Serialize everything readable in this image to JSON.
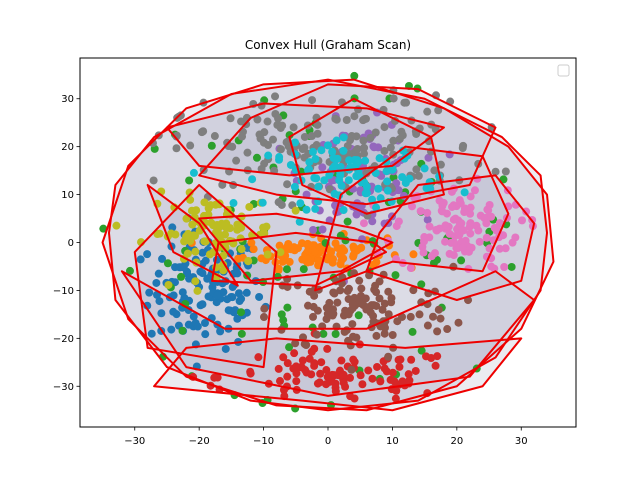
{
  "chart_data": {
    "type": "scatter",
    "title": "Convex Hull (Graham Scan)",
    "xlabel": "",
    "ylabel": "",
    "xlim": [
      -38.5,
      38.5
    ],
    "ylim": [
      -38.5,
      38.5
    ],
    "xticks": [
      -30,
      -20,
      -10,
      0,
      10,
      20,
      30
    ],
    "yticks": [
      -30,
      -20,
      -10,
      0,
      10,
      20,
      30
    ],
    "grid": false,
    "legend": {
      "position": "top-right",
      "entries": []
    },
    "hull_color": "#ee0000",
    "hull_fill": "#b0b0c8",
    "clusters": [
      {
        "color": "#1f77b4",
        "center": [
          -19,
          -10
        ],
        "spread": [
          8,
          11
        ],
        "count": 130
      },
      {
        "color": "#ff7f0e",
        "center": [
          -2,
          -2
        ],
        "spread": [
          10,
          3
        ],
        "count": 110
      },
      {
        "color": "#2ca02c",
        "center": [
          0,
          0
        ],
        "spread": [
          28,
          28
        ],
        "count": 110
      },
      {
        "color": "#d62728",
        "center": [
          2,
          -28
        ],
        "spread": [
          17,
          5
        ],
        "count": 100
      },
      {
        "color": "#9467bd",
        "center": [
          5,
          14
        ],
        "spread": [
          8,
          10
        ],
        "count": 100
      },
      {
        "color": "#8c564b",
        "center": [
          5,
          -14
        ],
        "spread": [
          13,
          8
        ],
        "count": 120
      },
      {
        "color": "#e377c2",
        "center": [
          20,
          3
        ],
        "spread": [
          9,
          8
        ],
        "count": 120
      },
      {
        "color": "#7f7f7f",
        "center": [
          0,
          20
        ],
        "spread": [
          22,
          10
        ],
        "count": 170
      },
      {
        "color": "#bcbd22",
        "center": [
          -18,
          2
        ],
        "spread": [
          9,
          7
        ],
        "count": 100
      },
      {
        "color": "#17becf",
        "center": [
          4,
          14
        ],
        "spread": [
          12,
          6
        ],
        "count": 90
      }
    ],
    "hulls": [
      {
        "points": [
          [
            -34,
            2
          ],
          [
            -33,
            -12
          ],
          [
            -25,
            -26
          ],
          [
            -12,
            -33
          ],
          [
            0,
            -35
          ],
          [
            14,
            -33
          ],
          [
            26,
            -24
          ],
          [
            33,
            -10
          ],
          [
            34,
            2
          ],
          [
            33,
            14
          ],
          [
            27,
            22
          ],
          [
            15,
            30
          ],
          [
            0,
            34
          ],
          [
            -15,
            31
          ],
          [
            -27,
            22
          ],
          [
            -33,
            12
          ]
        ]
      },
      {
        "points": [
          [
            -35,
            0
          ],
          [
            -31,
            -16
          ],
          [
            -22,
            -28
          ],
          [
            -8,
            -34
          ],
          [
            6,
            -35
          ],
          [
            20,
            -30
          ],
          [
            30,
            -18
          ],
          [
            35,
            -4
          ],
          [
            34,
            10
          ],
          [
            28,
            20
          ],
          [
            18,
            28
          ],
          [
            4,
            34
          ],
          [
            -10,
            33
          ],
          [
            -22,
            28
          ],
          [
            -31,
            16
          ]
        ]
      },
      {
        "points": [
          [
            -20,
            5
          ],
          [
            -12,
            -8
          ],
          [
            2,
            -6
          ],
          [
            10,
            0
          ],
          [
            4,
            3
          ],
          [
            -8,
            6
          ]
        ]
      },
      {
        "points": [
          [
            -18,
            -8
          ],
          [
            -2,
            -9
          ],
          [
            9,
            -2
          ],
          [
            7,
            0
          ],
          [
            -5,
            2
          ],
          [
            -17,
            0
          ]
        ]
      },
      {
        "points": [
          [
            -28,
            12
          ],
          [
            -24,
            -2
          ],
          [
            -14,
            -9
          ],
          [
            -20,
            4
          ]
        ]
      },
      {
        "points": [
          [
            -30,
            -2
          ],
          [
            -28,
            -22
          ],
          [
            -10,
            -26
          ],
          [
            -8,
            -2
          ],
          [
            -20,
            12
          ]
        ]
      },
      {
        "points": [
          [
            -2,
            -10
          ],
          [
            10,
            -4
          ],
          [
            24,
            -6
          ],
          [
            28,
            6
          ],
          [
            24,
            18
          ],
          [
            12,
            20
          ],
          [
            2,
            10
          ]
        ]
      },
      {
        "points": [
          [
            -27,
            -30
          ],
          [
            -4,
            -33
          ],
          [
            10,
            -35
          ],
          [
            24,
            -30
          ],
          [
            30,
            -20
          ],
          [
            12,
            -22
          ],
          [
            -8,
            -20
          ],
          [
            -22,
            -22
          ]
        ]
      },
      {
        "points": [
          [
            -12,
            26
          ],
          [
            0,
            33
          ],
          [
            14,
            32
          ],
          [
            26,
            24
          ],
          [
            22,
            12
          ],
          [
            6,
            8
          ],
          [
            -8,
            10
          ],
          [
            -20,
            14
          ]
        ]
      },
      {
        "points": [
          [
            -6,
            22
          ],
          [
            4,
            30
          ],
          [
            16,
            22
          ],
          [
            18,
            10
          ],
          [
            6,
            6
          ],
          [
            -4,
            12
          ]
        ]
      },
      {
        "points": [
          [
            -25,
            24
          ],
          [
            -10,
            29
          ],
          [
            6,
            28
          ],
          [
            18,
            24
          ],
          [
            10,
            16
          ],
          [
            -6,
            14
          ],
          [
            -20,
            16
          ]
        ]
      },
      {
        "points": [
          [
            6,
            -6
          ],
          [
            20,
            -12
          ],
          [
            30,
            -8
          ],
          [
            32,
            4
          ],
          [
            26,
            14
          ],
          [
            14,
            12
          ],
          [
            8,
            2
          ]
        ]
      },
      {
        "points": [
          [
            -32,
            -6
          ],
          [
            -22,
            -26
          ],
          [
            0,
            -32
          ],
          [
            22,
            -28
          ],
          [
            32,
            -12
          ],
          [
            26,
            -6
          ],
          [
            6,
            -18
          ],
          [
            -16,
            -18
          ]
        ]
      }
    ]
  }
}
